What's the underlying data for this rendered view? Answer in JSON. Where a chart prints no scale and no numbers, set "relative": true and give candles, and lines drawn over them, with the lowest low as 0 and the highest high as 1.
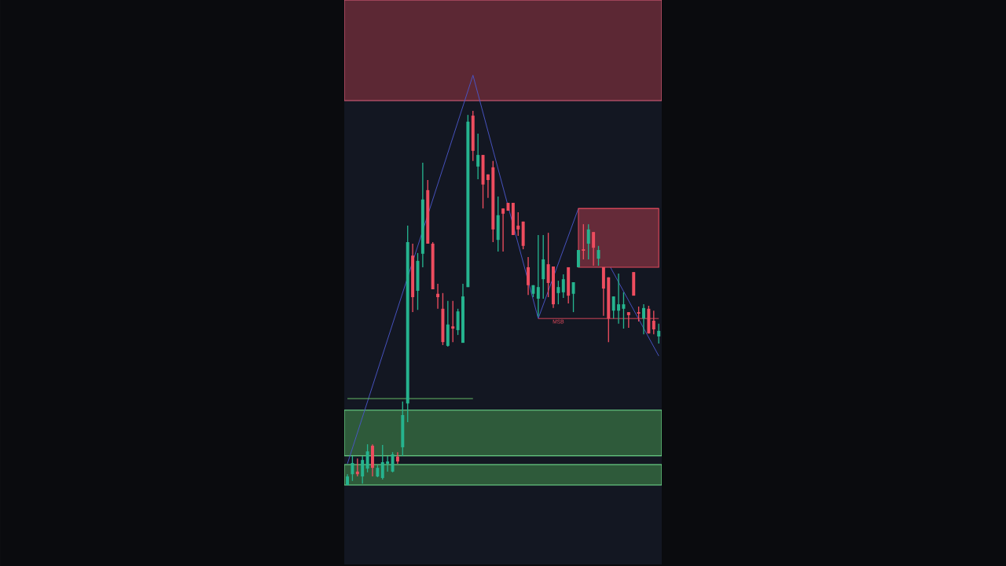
{
  "chart_data": {
    "type": "candlestick",
    "relative": true,
    "categories": [
      null,
      null,
      null,
      null,
      null,
      null,
      null,
      null,
      null,
      null,
      null,
      null,
      null,
      null,
      null,
      null,
      null,
      null,
      null,
      null,
      null,
      null,
      null,
      null,
      null,
      null,
      null,
      null,
      null,
      null,
      null,
      null,
      null,
      null,
      null,
      null,
      null,
      null,
      null,
      null,
      null,
      null,
      null,
      null,
      null,
      null,
      null,
      null,
      null,
      null,
      null,
      null,
      null,
      null,
      null,
      null,
      null,
      null,
      null,
      null,
      null,
      null,
      null
    ],
    "ohlc": [
      [
        0,
        0.029,
        0,
        0.023
      ],
      [
        0.029,
        0.078,
        0.011,
        0.059
      ],
      [
        0.036,
        0.071,
        0.023,
        0.029
      ],
      [
        0.023,
        0.078,
        0.004,
        0.067
      ],
      [
        0.044,
        0.109,
        0.034,
        0.09
      ],
      [
        0.105,
        0.109,
        0.023,
        0.046
      ],
      [
        0.023,
        0.053,
        0.021,
        0.046
      ],
      [
        0.019,
        0.107,
        0.015,
        0.061
      ],
      [
        0.057,
        0.078,
        0.036,
        0.063
      ],
      [
        0.036,
        0.088,
        0.034,
        0.082
      ],
      [
        0.076,
        0.088,
        0.057,
        0.063
      ],
      [
        0.101,
        0.223,
        0.078,
        0.187
      ],
      [
        0.218,
        0.693,
        0.168,
        0.649
      ],
      [
        0.613,
        0.645,
        0.462,
        0.502
      ],
      [
        0.519,
        0.62,
        0.468,
        0.599
      ],
      [
        0.618,
        0.861,
        0.582,
        0.763
      ],
      [
        0.788,
        0.815,
        0.645,
        0.645
      ],
      [
        0.645,
        0.649,
        0.523,
        0.523
      ],
      [
        0.511,
        0.538,
        0.471,
        0.502
      ],
      [
        0.471,
        0.513,
        0.374,
        0.382
      ],
      [
        0.372,
        0.492,
        0.37,
        0.429
      ],
      [
        0.424,
        0.492,
        0.382,
        0.418
      ],
      [
        0.414,
        0.471,
        0.401,
        0.464
      ],
      [
        0.38,
        0.538,
        0.38,
        0.504
      ],
      [
        0.529,
        0.989,
        0.529,
        0.971
      ],
      [
        0.987,
        1,
        0.866,
        0.893
      ],
      [
        0.851,
        0.939,
        0.817,
        0.882
      ],
      [
        0.882,
        0.882,
        0.739,
        0.803
      ],
      [
        0.83,
        0.83,
        0.767,
        0.815
      ],
      [
        0.849,
        0.866,
        0.649,
        0.683
      ],
      [
        0.655,
        0.771,
        0.624,
        0.721
      ],
      [
        0.739,
        0.739,
        0.624,
        0.725
      ],
      [
        0.754,
        0.754,
        0.733,
        0.733
      ],
      [
        0.754,
        0.754,
        0.668,
        0.668
      ],
      [
        0.693,
        0.729,
        0.666,
        0.683
      ],
      [
        0.704,
        0.704,
        0.63,
        0.639
      ],
      [
        0.582,
        0.609,
        0.508,
        0.534
      ],
      [
        0.511,
        0.534,
        0.502,
        0.534
      ],
      [
        0.498,
        0.668,
        0.45,
        0.529
      ],
      [
        0.55,
        0.668,
        0.498,
        0.603
      ],
      [
        0.59,
        0.674,
        0.502,
        0.54
      ],
      [
        0.584,
        0.584,
        0.473,
        0.483
      ],
      [
        0.513,
        0.546,
        0.483,
        0.529
      ],
      [
        0.515,
        0.563,
        0.5,
        0.55
      ],
      [
        0.582,
        0.582,
        0.485,
        0.506
      ],
      [
        0.511,
        0.542,
        0.462,
        0.542
      ],
      [
        0.582,
        0.628,
        0.582,
        0.628
      ],
      [
        0.63,
        0.697,
        0.603,
        0.626
      ],
      [
        0.645,
        0.697,
        0.603,
        0.683
      ],
      [
        0.676,
        0.676,
        0.586,
        0.634
      ],
      [
        0.605,
        0.639,
        0.586,
        0.628
      ],
      [
        0.582,
        0.582,
        0.452,
        0.525
      ],
      [
        0.555,
        0.555,
        0.382,
        0.445
      ],
      [
        0.466,
        0.504,
        0.445,
        0.504
      ],
      [
        0.466,
        0.565,
        0.431,
        0.483
      ],
      [
        0.471,
        0.515,
        0.418,
        0.483
      ],
      [
        0.462,
        0.462,
        0.42,
        0.454
      ],
      [
        0.569,
        0.569,
        0.506,
        0.506
      ],
      [
        0.462,
        0.477,
        0.437,
        0.458
      ],
      [
        0.445,
        0.483,
        0.403,
        0.473
      ],
      [
        0.471,
        0.479,
        0.405,
        0.405
      ],
      [
        0.439,
        0.466,
        0.403,
        0.416
      ],
      [
        0.397,
        0.431,
        0.378,
        0.412
      ]
    ],
    "colors": [
      "#26b48f",
      "#26b48f",
      "#ee4d5f",
      "#26b48f",
      "#26b48f",
      "#ee4d5f",
      "#26b48f",
      "#26b48f",
      "#26b48f",
      "#26b48f",
      "#ee4d5f",
      "#26b48f",
      "#26b48f",
      "#ee4d5f",
      "#26b48f",
      "#26b48f",
      "#ee4d5f",
      "#ee4d5f",
      "#ee4d5f",
      "#ee4d5f",
      "#26b48f",
      "#ee4d5f",
      "#26b48f",
      "#26b48f",
      "#26b48f",
      "#ee4d5f",
      "#26b48f",
      "#ee4d5f",
      "#ee4d5f",
      "#ee4d5f",
      "#26b48f",
      "#ee4d5f",
      "#ee4d5f",
      "#ee4d5f",
      "#ee4d5f",
      "#ee4d5f",
      "#ee4d5f",
      "#26b48f",
      "#26b48f",
      "#26b48f",
      "#ee4d5f",
      "#ee4d5f",
      "#26b48f",
      "#26b48f",
      "#ee4d5f",
      "#26b48f",
      "#26b48f",
      "#ee4d5f",
      "#26b48f",
      "#ee4d5f",
      "#26b48f",
      "#ee4d5f",
      "#ee4d5f",
      "#26b48f",
      "#26b48f",
      "#26b48f",
      "#ee4d5f",
      "#ee4d5f",
      "#ee4d5f",
      "#26b48f",
      "#ee4d5f",
      "#ee4d5f",
      "#26b48f"
    ],
    "series": [
      {
        "type": "line",
        "color": "#4a56c9",
        "values": [
          0.057,
          null,
          null,
          null,
          null,
          null,
          null,
          null,
          null,
          null,
          null,
          null,
          null,
          null,
          null,
          null,
          null,
          null,
          null,
          null,
          null,
          null,
          null,
          null,
          null,
          1.095,
          null,
          null,
          null,
          null,
          null,
          null,
          null,
          null,
          null,
          null,
          null,
          null,
          0.445,
          null,
          null,
          null,
          null,
          null,
          null,
          null,
          0.739,
          null,
          null,
          null,
          null,
          null,
          null,
          null,
          null,
          null,
          null,
          null,
          null,
          null,
          null,
          null,
          0.345
        ]
      },
      {
        "type": "line",
        "color": "#6cc66c",
        "values": [
          0.231,
          0.231,
          0.231,
          0.231,
          0.231,
          0.231,
          0.231,
          0.231,
          0.231,
          0.231,
          0.231,
          0.231,
          0.231,
          0.231,
          0.231,
          0.231,
          0.231,
          0.231,
          0.231,
          0.231,
          0.231,
          0.231,
          0.231,
          0.231,
          0.231,
          0.231,
          null,
          null,
          null,
          null,
          null,
          null,
          null,
          null,
          null,
          null,
          null,
          null,
          null,
          null,
          null,
          null,
          null,
          null,
          null,
          null,
          null,
          null,
          null,
          null,
          null,
          null,
          null,
          null,
          null,
          null,
          null,
          null,
          null,
          null,
          null,
          null,
          null
        ]
      },
      {
        "type": "line",
        "name": "MSB",
        "color": "#e04a5c",
        "values": [
          null,
          null,
          null,
          null,
          null,
          null,
          null,
          null,
          null,
          null,
          null,
          null,
          null,
          null,
          null,
          null,
          null,
          null,
          null,
          null,
          null,
          null,
          null,
          null,
          null,
          null,
          null,
          null,
          null,
          null,
          null,
          null,
          null,
          null,
          null,
          null,
          null,
          null,
          0.445,
          0.445,
          0.445,
          0.445,
          0.445,
          0.445,
          0.445,
          0.445,
          0.445,
          0.445,
          0.445,
          0.445,
          0.445,
          0.445,
          0.445,
          0.445,
          0.445,
          0.445,
          0.445,
          0.445,
          0.445,
          0.445,
          0.445,
          0.445,
          0.445
        ]
      },
      {
        "type": "line",
        "color": "#e04a5c",
        "values": [
          null,
          null,
          null,
          null,
          null,
          null,
          null,
          null,
          null,
          null,
          null,
          null,
          null,
          null,
          null,
          null,
          null,
          null,
          null,
          null,
          null,
          null,
          null,
          null,
          null,
          null,
          null,
          null,
          null,
          null,
          null,
          null,
          null,
          null,
          null,
          null,
          null,
          null,
          null,
          null,
          null,
          null,
          null,
          null,
          null,
          null,
          0.739,
          0.739,
          0.739,
          0.739,
          0.739,
          0.739,
          0.739,
          0.739,
          0.739,
          0.739,
          0.739,
          0.739,
          0.739,
          0.739,
          0.739,
          0.739,
          0.739
        ],
        "lower": [
          null,
          null,
          null,
          null,
          null,
          null,
          null,
          null,
          null,
          null,
          null,
          null,
          null,
          null,
          null,
          null,
          null,
          null,
          null,
          null,
          null,
          null,
          null,
          null,
          null,
          null,
          null,
          null,
          null,
          null,
          null,
          null,
          null,
          null,
          null,
          null,
          null,
          null,
          null,
          null,
          null,
          null,
          null,
          null,
          null,
          null,
          0.582,
          0.582,
          0.582,
          0.582,
          0.582,
          0.582,
          0.582,
          0.582,
          0.582,
          0.582,
          0.582,
          0.582,
          0.582,
          0.582,
          0.582,
          0.582,
          0.582
        ],
        "upper": [
          null,
          null,
          null,
          null,
          null,
          null,
          null,
          null,
          null,
          null,
          null,
          null,
          null,
          null,
          null,
          null,
          null,
          null,
          null,
          null,
          null,
          null,
          null,
          null,
          null,
          null,
          null,
          null,
          null,
          null,
          null,
          null,
          null,
          null,
          null,
          null,
          null,
          null,
          null,
          null,
          null,
          null,
          null,
          null,
          null,
          null,
          0.739,
          0.739,
          0.739,
          0.739,
          0.739,
          0.739,
          0.739,
          0.739,
          0.739,
          0.739,
          0.739,
          0.739,
          0.739,
          0.739,
          0.739,
          0.739,
          0.739
        ]
      }
    ],
    "bands": [
      {
        "axis": "y",
        "from": 1.027,
        "to": 1.296,
        "color": "#5c2834"
      },
      {
        "axis": "y",
        "from": 0.078,
        "to": 0.2,
        "color": "#2e5a3a"
      },
      {
        "axis": "y",
        "from": 0,
        "to": 0.055,
        "color": "#2e5a3a"
      }
    ]
  }
}
